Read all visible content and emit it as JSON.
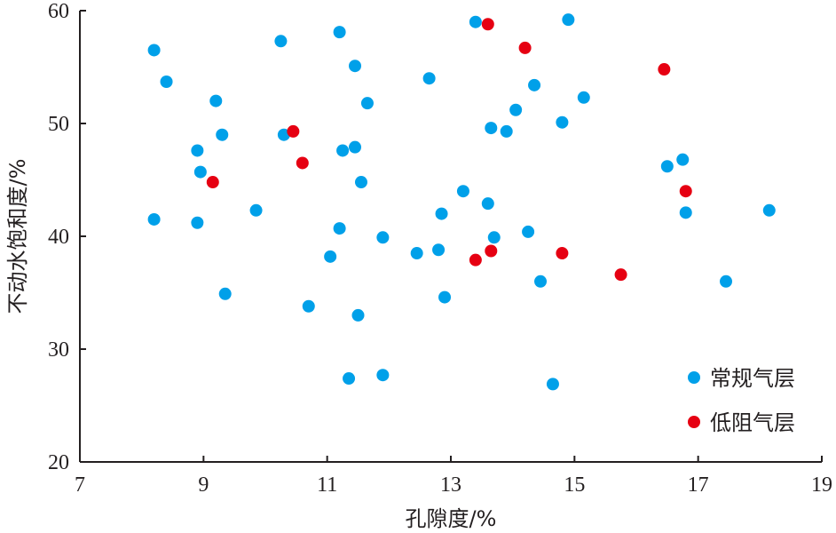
{
  "chart_data": {
    "type": "scatter",
    "xlabel": "孔隙度/%",
    "ylabel": "不动水饱和度/%",
    "xlim": [
      7,
      19
    ],
    "ylim": [
      20,
      60
    ],
    "xticks": [
      7,
      9,
      11,
      13,
      15,
      17,
      19
    ],
    "yticks": [
      20,
      30,
      40,
      50,
      60
    ],
    "grid": false,
    "legend_position": "bottom-right",
    "series": [
      {
        "name": "常规气层",
        "color": "#00a0e9",
        "points": [
          [
            8.2,
            56.5
          ],
          [
            8.4,
            53.7
          ],
          [
            8.2,
            41.5
          ],
          [
            8.9,
            47.6
          ],
          [
            8.9,
            41.2
          ],
          [
            8.95,
            45.7
          ],
          [
            9.2,
            52.0
          ],
          [
            9.3,
            49.0
          ],
          [
            9.35,
            34.9
          ],
          [
            9.85,
            42.3
          ],
          [
            10.25,
            57.3
          ],
          [
            10.3,
            49.0
          ],
          [
            10.7,
            33.8
          ],
          [
            11.05,
            38.2
          ],
          [
            11.2,
            58.1
          ],
          [
            11.2,
            40.7
          ],
          [
            11.25,
            47.6
          ],
          [
            11.35,
            27.4
          ],
          [
            11.45,
            55.1
          ],
          [
            11.45,
            47.9
          ],
          [
            11.5,
            33.0
          ],
          [
            11.55,
            44.8
          ],
          [
            11.65,
            51.8
          ],
          [
            11.9,
            39.9
          ],
          [
            11.9,
            27.7
          ],
          [
            12.45,
            38.5
          ],
          [
            12.65,
            54.0
          ],
          [
            12.8,
            38.8
          ],
          [
            12.85,
            42.0
          ],
          [
            12.9,
            34.6
          ],
          [
            13.2,
            44.0
          ],
          [
            13.4,
            59.0
          ],
          [
            13.6,
            42.9
          ],
          [
            13.65,
            49.6
          ],
          [
            13.7,
            39.9
          ],
          [
            13.9,
            49.3
          ],
          [
            14.05,
            51.2
          ],
          [
            14.25,
            40.4
          ],
          [
            14.35,
            53.4
          ],
          [
            14.45,
            36.0
          ],
          [
            14.65,
            26.9
          ],
          [
            14.8,
            50.1
          ],
          [
            14.9,
            59.2
          ],
          [
            15.15,
            52.3
          ],
          [
            16.5,
            46.2
          ],
          [
            16.75,
            46.8
          ],
          [
            16.8,
            42.1
          ],
          [
            17.45,
            36.0
          ],
          [
            18.15,
            42.3
          ]
        ]
      },
      {
        "name": "低阻气层",
        "color": "#e60012",
        "points": [
          [
            9.15,
            44.8
          ],
          [
            10.45,
            49.3
          ],
          [
            10.6,
            46.5
          ],
          [
            13.4,
            37.9
          ],
          [
            13.6,
            58.8
          ],
          [
            13.65,
            38.7
          ],
          [
            14.2,
            56.7
          ],
          [
            14.8,
            38.5
          ],
          [
            15.75,
            36.6
          ],
          [
            16.45,
            54.8
          ],
          [
            16.8,
            44.0
          ]
        ]
      }
    ]
  }
}
